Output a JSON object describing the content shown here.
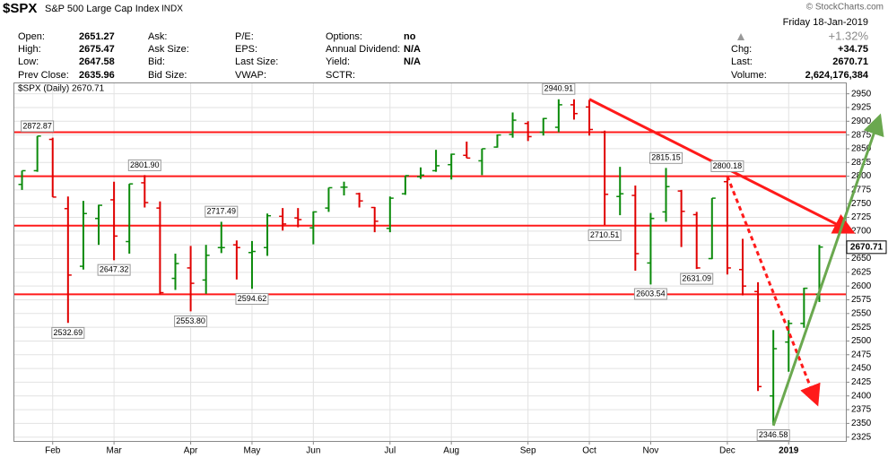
{
  "header": {
    "symbol": "$SPX",
    "name": "S&P 500 Large Cap Index",
    "exchange": "INDX",
    "copyright": "© StockCharts.com"
  },
  "quote": {
    "date": "Friday 18-Jan-2019",
    "cols": [
      [
        [
          "Open:",
          "2651.27"
        ],
        [
          "High:",
          "2675.47"
        ],
        [
          "Low:",
          "2647.58"
        ],
        [
          "Prev Close:",
          "2635.96"
        ]
      ],
      [
        [
          "Ask:"
        ],
        [
          "Ask Size:"
        ],
        [
          "Bid:"
        ],
        [
          "Bid Size:"
        ]
      ],
      [
        [
          "P/E:"
        ],
        [
          "EPS:"
        ],
        [
          "Last Size:"
        ],
        [
          "VWAP:"
        ]
      ],
      [
        [
          "Options:",
          "no"
        ],
        [
          "Annual Dividend:",
          "N/A"
        ],
        [
          "Yield:",
          "N/A"
        ],
        [
          "SCTR:"
        ]
      ]
    ],
    "change_pct": "+1.32%",
    "right": [
      [
        "Chg:",
        "+34.75"
      ],
      [
        "Last:",
        "2670.71"
      ],
      [
        "Volume:",
        "2,624,176,384"
      ]
    ]
  },
  "chart_data": {
    "type": "ohlc",
    "legend": "$SPX (Daily) 2670.71",
    "categories": [
      null,
      null,
      "Feb",
      null,
      null,
      null,
      "Mar",
      null,
      null,
      null,
      null,
      "Apr",
      null,
      null,
      null,
      "May",
      null,
      null,
      null,
      "Jun",
      null,
      null,
      null,
      null,
      "Jul",
      null,
      null,
      null,
      "Aug",
      null,
      null,
      null,
      null,
      "Sep",
      null,
      null,
      null,
      "Oct",
      null,
      null,
      null,
      "Nov",
      null,
      null,
      null,
      null,
      "Dec",
      null,
      null,
      null,
      "2019",
      null,
      null
    ],
    "open": [
      2785,
      2810,
      2867,
      2741,
      2636,
      2723,
      2757,
      2681,
      2788,
      2742,
      2614,
      2633,
      2611,
      2670,
      2675,
      2661,
      2670,
      2727,
      2724,
      2706,
      2742,
      2780,
      2768,
      2743,
      2705,
      2768,
      2799,
      2810,
      2821,
      2838,
      2828,
      2853,
      2876,
      2896,
      2880,
      2889,
      2930,
      2926,
      2880,
      2763,
      2765,
      2642,
      2735,
      2773,
      2730,
      2650,
      2790,
      2630,
      2590,
      2400,
      2498,
      2532,
      2585
    ],
    "high": [
      2810,
      2873,
      2870,
      2763,
      2755,
      2748,
      2790,
      2786,
      2802,
      2754,
      2659,
      2673,
      2675,
      2717,
      2683,
      2682,
      2732,
      2742,
      2742,
      2736,
      2779,
      2790,
      2770,
      2744,
      2763,
      2801,
      2816,
      2848,
      2841,
      2863,
      2850,
      2876,
      2916,
      2900,
      2906,
      2940,
      2940,
      2939,
      2883,
      2817,
      2783,
      2733,
      2815,
      2775,
      2735,
      2760,
      2800,
      2686,
      2607,
      2520,
      2538,
      2597,
      2675
    ],
    "low": [
      2775,
      2808,
      2762,
      2533,
      2630,
      2675,
      2647,
      2659,
      2743,
      2585,
      2593,
      2554,
      2586,
      2660,
      2612,
      2595,
      2655,
      2701,
      2707,
      2676,
      2735,
      2765,
      2743,
      2698,
      2698,
      2766,
      2795,
      2808,
      2794,
      2833,
      2802,
      2852,
      2870,
      2864,
      2874,
      2880,
      2903,
      2874,
      2711,
      2729,
      2628,
      2603,
      2717,
      2671,
      2631,
      2649,
      2621,
      2583,
      2409,
      2347,
      2444,
      2524,
      2571
    ],
    "close": [
      2810,
      2873,
      2762,
      2620,
      2732,
      2747,
      2691,
      2786,
      2752,
      2588,
      2641,
      2605,
      2656,
      2670,
      2670,
      2663,
      2728,
      2713,
      2721,
      2735,
      2779,
      2780,
      2755,
      2718,
      2760,
      2801,
      2802,
      2819,
      2840,
      2833,
      2850,
      2875,
      2902,
      2872,
      2905,
      2930,
      2914,
      2885,
      2767,
      2768,
      2659,
      2723,
      2781,
      2736,
      2633,
      2760,
      2633,
      2600,
      2417,
      2486,
      2532,
      2596,
      2671
    ],
    "up_color": "#0a8a0a",
    "down_color": "#e00000",
    "price_labels": [
      {
        "value": 2872.87,
        "label": "2872.87"
      },
      {
        "value": 2532.69,
        "label": "2532.69"
      },
      {
        "value": 2801.9,
        "label": "2801.90"
      },
      {
        "value": 2647.32,
        "label": "2647.32"
      },
      {
        "value": 2717.49,
        "label": "2717.49"
      },
      {
        "value": 2553.8,
        "label": "2553.80"
      },
      {
        "value": 2594.62,
        "label": "2594.62"
      },
      {
        "value": 2940.91,
        "label": "2940.91"
      },
      {
        "value": 2710.51,
        "label": "2710.51"
      },
      {
        "value": 2603.54,
        "label": "2603.54"
      },
      {
        "value": 2815.15,
        "label": "2815.15"
      },
      {
        "value": 2800.18,
        "label": "2800.18"
      },
      {
        "value": 2631.09,
        "label": "2631.09"
      },
      {
        "value": 2346.58,
        "label": "2346.58"
      }
    ],
    "last_value": {
      "value": 2670.71,
      "label": "2670.71"
    },
    "reference_lines": [
      2880,
      2800,
      2710,
      2585
    ],
    "reference_color": "#ff1a1a",
    "trend_lines": [
      {
        "color": "#ff1a1a",
        "from": 2940,
        "to": 2700,
        "dashed": false
      },
      {
        "color": "#ff1a1a",
        "from": 2800,
        "to": 2390,
        "dashed": true
      },
      {
        "color": "#6aa84f",
        "from": 2346,
        "to": 2905,
        "dashed": false
      }
    ],
    "ylim": [
      2318,
      2969
    ],
    "yticks": [
      2325,
      2350,
      2375,
      2400,
      2425,
      2450,
      2475,
      2500,
      2525,
      2550,
      2575,
      2600,
      2625,
      2650,
      2675,
      2700,
      2725,
      2750,
      2775,
      2800,
      2825,
      2850,
      2875,
      2900,
      2925,
      2950
    ],
    "grid": true
  }
}
